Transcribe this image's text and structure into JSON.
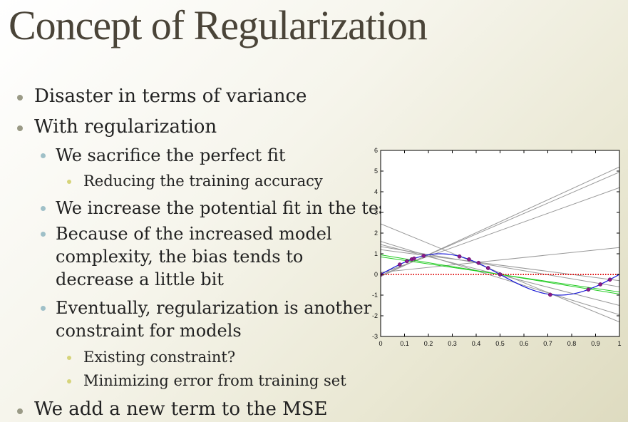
{
  "slide": {
    "title": "Concept of Regularization",
    "bullets": [
      "Disaster in terms of variance",
      "With regularization",
      "We sacrifice the perfect fit",
      "Reducing the training accuracy",
      "We increase the potential fit in the test",
      "Because of the increased model",
      "complexity, the bias tends to",
      "decrease a little bit",
      "Eventually, regularization is another",
      "constraint for models",
      "Existing constraint?",
      "Minimizing error from training set",
      "We add a new term to the MSE"
    ]
  },
  "chart_data": {
    "type": "line",
    "xlim": [
      0,
      1
    ],
    "ylim": [
      -3,
      6
    ],
    "x_ticks": [
      "0",
      "0.1",
      "0.2",
      "0.3",
      "0.4",
      "0.5",
      "0.6",
      "0.7",
      "0.8",
      "0.9",
      "1"
    ],
    "y_ticks": [
      "-3",
      "-2",
      "-1",
      "0",
      "1",
      "2",
      "3",
      "4",
      "5",
      "6"
    ],
    "grid": false,
    "series": [
      {
        "style": "sine-curve",
        "color": "#1b1bd6",
        "x": [
          0,
          0.1,
          0.2,
          0.25,
          0.3,
          0.4,
          0.5,
          0.6,
          0.7,
          0.75,
          0.8,
          0.9,
          1
        ],
        "y": [
          0,
          0.59,
          0.95,
          1.0,
          0.95,
          0.59,
          0,
          -0.59,
          -0.95,
          -1.0,
          -0.95,
          -0.59,
          0
        ]
      },
      {
        "style": "zero-line-dotted",
        "color": "#e01010",
        "x": [
          0,
          1
        ],
        "y": [
          0,
          0
        ]
      },
      {
        "style": "fit",
        "color": "#22cc22",
        "x": [
          0,
          1
        ],
        "y": [
          0.95,
          -0.95
        ]
      },
      {
        "style": "fit",
        "color": "#22cc22",
        "x": [
          0,
          1
        ],
        "y": [
          0.85,
          -0.85
        ]
      },
      {
        "style": "fit",
        "color": "#999999",
        "x": [
          0,
          1
        ],
        "y": [
          -0.1,
          5.2
        ]
      },
      {
        "style": "fit",
        "color": "#999999",
        "x": [
          0,
          1
        ],
        "y": [
          -0.05,
          4.95
        ]
      },
      {
        "style": "fit",
        "color": "#999999",
        "x": [
          0,
          1
        ],
        "y": [
          0.05,
          4.2
        ]
      },
      {
        "style": "fit",
        "color": "#999999",
        "x": [
          0,
          1
        ],
        "y": [
          0.1,
          1.3
        ]
      },
      {
        "style": "fit",
        "color": "#999999",
        "x": [
          0,
          1
        ],
        "y": [
          2.45,
          -2.3
        ]
      },
      {
        "style": "fit",
        "color": "#999999",
        "x": [
          0,
          1
        ],
        "y": [
          1.6,
          -1.95
        ]
      },
      {
        "style": "fit",
        "color": "#999999",
        "x": [
          0,
          1
        ],
        "y": [
          1.45,
          -1.5
        ]
      },
      {
        "style": "fit",
        "color": "#999999",
        "x": [
          0,
          1
        ],
        "y": [
          1.35,
          -0.6
        ]
      },
      {
        "style": "fit",
        "color": "#999999",
        "x": [
          0,
          1
        ],
        "y": [
          1.2,
          -0.3
        ]
      }
    ],
    "points": {
      "color": "#8a1a8a",
      "x": [
        0.0,
        0.08,
        0.11,
        0.13,
        0.14,
        0.18,
        0.33,
        0.37,
        0.41,
        0.45,
        0.5,
        0.71,
        0.87,
        0.92,
        0.96
      ],
      "y": [
        0.0,
        0.48,
        0.64,
        0.73,
        0.77,
        0.9,
        0.87,
        0.73,
        0.56,
        0.31,
        0.0,
        -0.98,
        -0.73,
        -0.48,
        -0.25
      ]
    }
  }
}
